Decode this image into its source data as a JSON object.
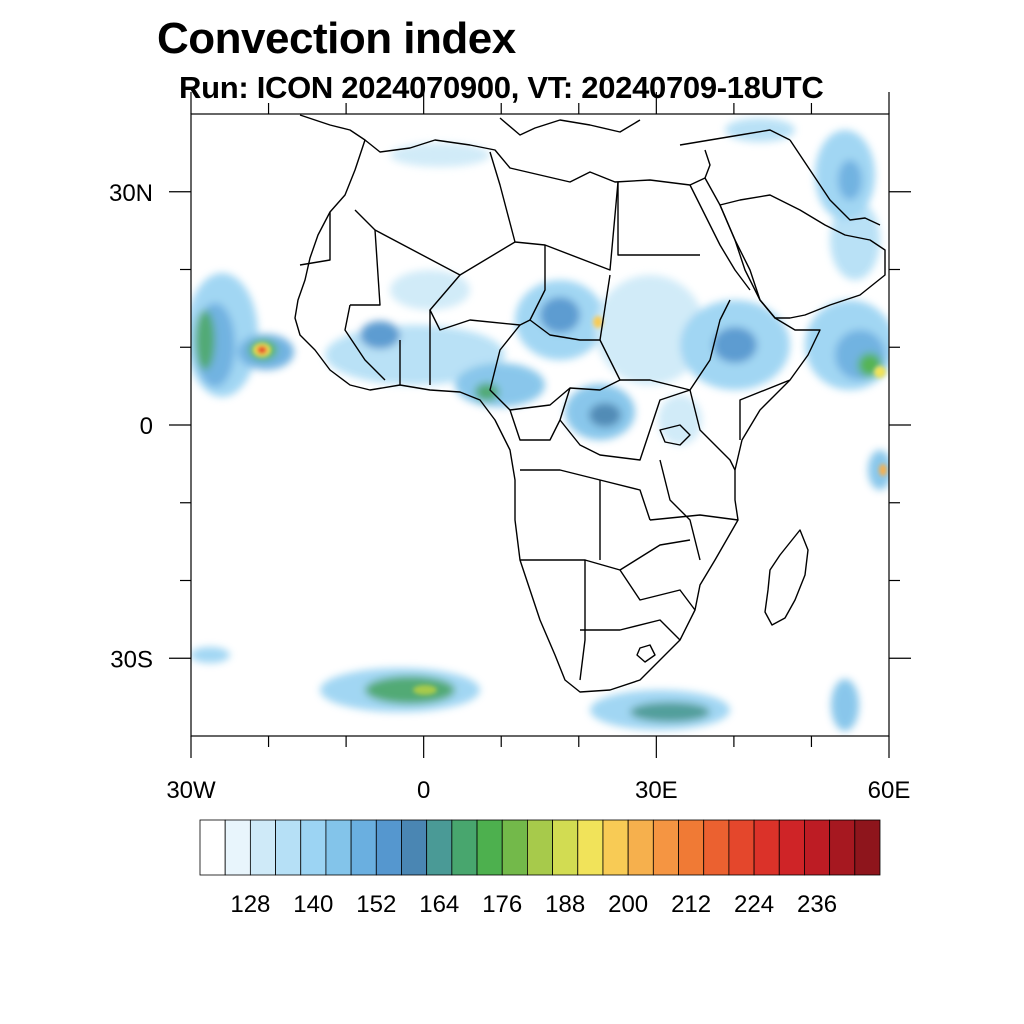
{
  "title": "Convection index",
  "subtitle": "Run: ICON 2024070900,  VT: 20240709-18UTC",
  "map": {
    "lon_range": [
      -30,
      60
    ],
    "lat_range": [
      -40,
      40
    ],
    "lon_ticks": [
      {
        "value": -30,
        "label": "30W"
      },
      {
        "value": 0,
        "label": "0"
      },
      {
        "value": 30,
        "label": "30E"
      },
      {
        "value": 60,
        "label": "60E"
      }
    ],
    "lat_ticks": [
      {
        "value": 30,
        "label": "30N"
      },
      {
        "value": 0,
        "label": "0"
      },
      {
        "value": -30,
        "label": "30S"
      }
    ],
    "minor_lon_ticks": [
      -20,
      -10,
      10,
      20,
      40,
      50
    ],
    "minor_lat_ticks": [
      20,
      10,
      -10,
      -20
    ]
  },
  "colorbar": {
    "colors": [
      "#ffffff",
      "#e8f5fc",
      "#cfeaf8",
      "#b6e0f6",
      "#9cd4f3",
      "#83c4ea",
      "#6aafe0",
      "#5597cf",
      "#4a86b3",
      "#4a9a96",
      "#48a66e",
      "#4db04e",
      "#73b94a",
      "#a7ca4b",
      "#d2dc52",
      "#f1e35a",
      "#f8cb55",
      "#f6b04d",
      "#f59542",
      "#f07a35",
      "#eb6130",
      "#e4472c",
      "#db3229",
      "#cf2427",
      "#bd1c24",
      "#a61820",
      "#8e151c"
    ],
    "labels": [
      "128",
      "140",
      "152",
      "164",
      "176",
      "188",
      "200",
      "212",
      "224",
      "236"
    ]
  }
}
